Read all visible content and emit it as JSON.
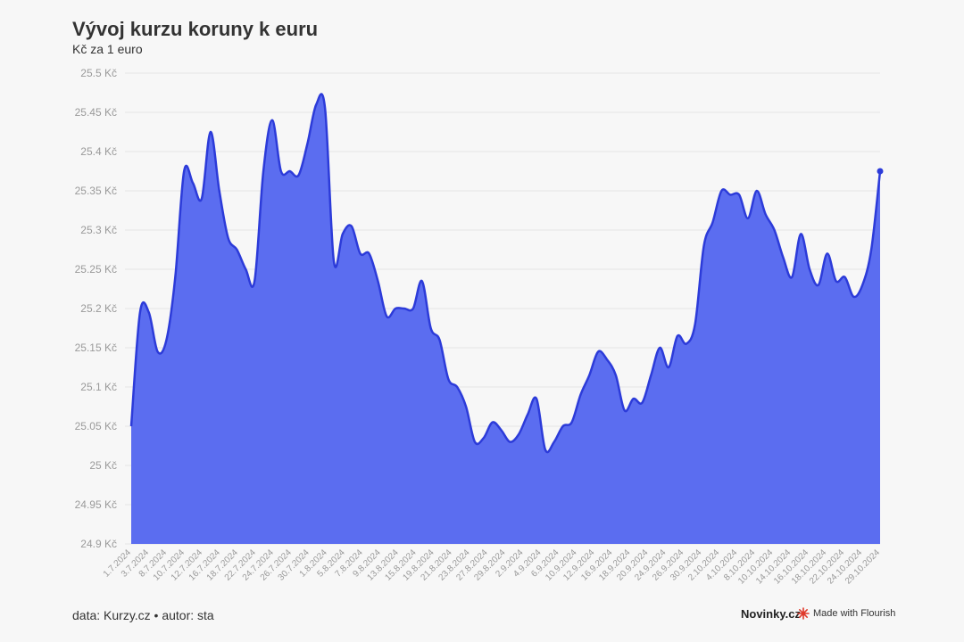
{
  "chart_data": {
    "type": "area",
    "title": "Vývoj kurzu koruny k euru",
    "subtitle": "Kč za 1 euro",
    "ylim": [
      24.9,
      25.5
    ],
    "y_ticks": [
      24.9,
      24.95,
      25.0,
      25.05,
      25.1,
      25.15,
      25.2,
      25.25,
      25.3,
      25.35,
      25.4,
      25.45,
      25.5
    ],
    "y_tick_labels": [
      "24.9 Kč",
      "24.95 Kč",
      "25 Kč",
      "25.05 Kč",
      "25.1 Kč",
      "25.15 Kč",
      "25.2 Kč",
      "25.25 Kč",
      "25.3 Kč",
      "25.35 Kč",
      "25.4 Kč",
      "25.45 Kč",
      "25.5 Kč"
    ],
    "x_tick_labels": [
      "1.7.2024",
      "3.7.2024",
      "8.7.2024",
      "10.7.2024",
      "12.7.2024",
      "16.7.2024",
      "18.7.2024",
      "22.7.2024",
      "24.7.2024",
      "26.7.2024",
      "30.7.2024",
      "1.8.2024",
      "5.8.2024",
      "7.8.2024",
      "9.8.2024",
      "13.8.2024",
      "15.8.2024",
      "19.8.2024",
      "21.8.2024",
      "23.8.2024",
      "27.8.2024",
      "29.8.2024",
      "2.9.2024",
      "4.9.2024",
      "6.9.2024",
      "10.9.2024",
      "12.9.2024",
      "16.9.2024",
      "18.9.2024",
      "20.9.2024",
      "24.9.2024",
      "26.9.2024",
      "30.9.2024",
      "2.10.2024",
      "4.10.2024",
      "8.10.2024",
      "10.10.2024",
      "14.10.2024",
      "16.10.2024",
      "18.10.2024",
      "22.10.2024",
      "24.10.2024",
      "29.10.2024"
    ],
    "x": [
      "1.7.2024",
      "2.7.2024",
      "3.7.2024",
      "4.7.2024",
      "5.7.2024",
      "8.7.2024",
      "9.7.2024",
      "10.7.2024",
      "11.7.2024",
      "12.7.2024",
      "15.7.2024",
      "16.7.2024",
      "17.7.2024",
      "18.7.2024",
      "19.7.2024",
      "22.7.2024",
      "23.7.2024",
      "24.7.2024",
      "25.7.2024",
      "26.7.2024",
      "29.7.2024",
      "30.7.2024",
      "31.7.2024",
      "1.8.2024",
      "2.8.2024",
      "5.8.2024",
      "6.8.2024",
      "7.8.2024",
      "8.8.2024",
      "9.8.2024",
      "12.8.2024",
      "13.8.2024",
      "14.8.2024",
      "15.8.2024",
      "16.8.2024",
      "19.8.2024",
      "20.8.2024",
      "21.8.2024",
      "22.8.2024",
      "23.8.2024",
      "26.8.2024",
      "27.8.2024",
      "28.8.2024",
      "29.8.2024",
      "30.8.2024",
      "2.9.2024",
      "3.9.2024",
      "4.9.2024",
      "5.9.2024",
      "6.9.2024",
      "9.9.2024",
      "10.9.2024",
      "11.9.2024",
      "12.9.2024",
      "13.9.2024",
      "16.9.2024",
      "17.9.2024",
      "18.9.2024",
      "19.9.2024",
      "20.9.2024",
      "23.9.2024",
      "24.9.2024",
      "25.9.2024",
      "26.9.2024",
      "27.9.2024",
      "30.9.2024",
      "1.10.2024",
      "2.10.2024",
      "3.10.2024",
      "4.10.2024",
      "7.10.2024",
      "8.10.2024",
      "9.10.2024",
      "10.10.2024",
      "11.10.2024",
      "14.10.2024",
      "15.10.2024",
      "16.10.2024",
      "17.10.2024",
      "18.10.2024",
      "21.10.2024",
      "22.10.2024",
      "23.10.2024",
      "24.10.2024",
      "25.10.2024",
      "29.10.2024"
    ],
    "values": [
      25.05,
      25.195,
      25.195,
      25.145,
      25.16,
      25.24,
      25.375,
      25.36,
      25.34,
      25.425,
      25.35,
      25.29,
      25.275,
      25.25,
      25.235,
      25.375,
      25.44,
      25.375,
      25.375,
      25.37,
      25.41,
      25.46,
      25.455,
      25.26,
      25.295,
      25.305,
      25.27,
      25.27,
      25.235,
      25.19,
      25.2,
      25.2,
      25.2,
      25.235,
      25.175,
      25.16,
      25.11,
      25.1,
      25.075,
      25.03,
      25.035,
      25.055,
      25.045,
      25.03,
      25.04,
      25.065,
      25.085,
      25.02,
      25.03,
      25.05,
      25.055,
      25.09,
      25.115,
      25.145,
      25.135,
      25.115,
      25.07,
      25.085,
      25.08,
      25.115,
      25.15,
      25.125,
      25.165,
      25.155,
      25.18,
      25.28,
      25.31,
      25.35,
      25.345,
      25.345,
      25.315,
      25.35,
      25.32,
      25.3,
      25.265,
      25.24,
      25.295,
      25.25,
      25.23,
      25.27,
      25.235,
      25.24,
      25.215,
      25.23,
      25.275,
      25.375
    ],
    "colors": {
      "area": "#5b6df0",
      "line": "#2c3bd9",
      "grid": "#e4e4e4",
      "tick_text": "#9a9a9a"
    },
    "grid": true,
    "legend": "none"
  },
  "footer": {
    "source": "data: Kurzy.cz • autor: sta",
    "brand": "Novinky.cz",
    "made_with": "Made with Flourish"
  }
}
